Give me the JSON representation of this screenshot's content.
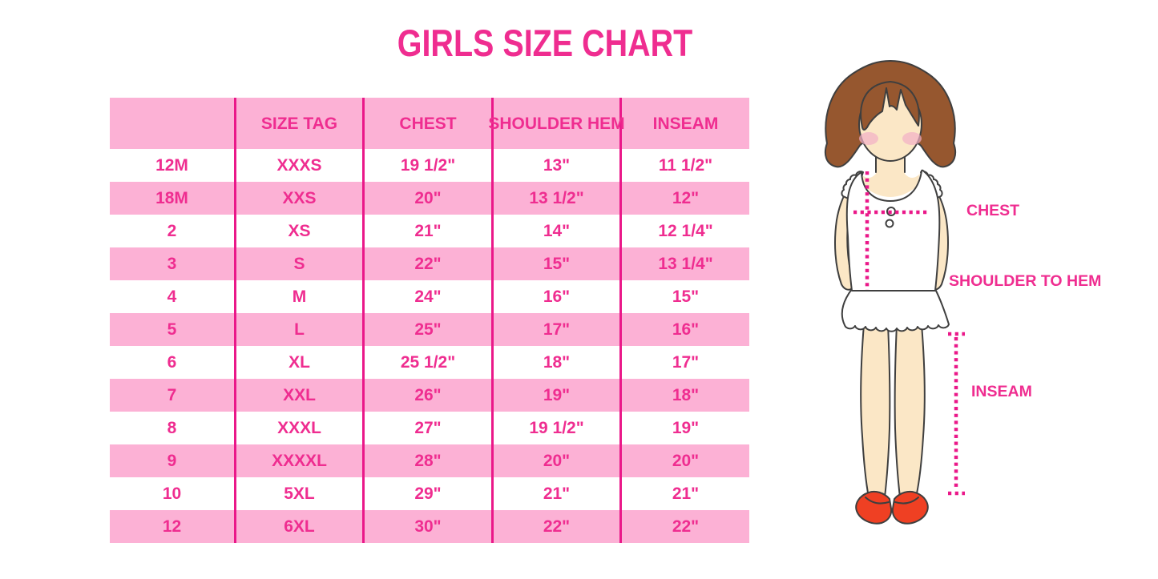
{
  "title": "GIRLS SIZE CHART",
  "table": {
    "headers": [
      "",
      "SIZE TAG",
      "CHEST",
      "SHOULDER HEM",
      "INSEAM"
    ],
    "rows": [
      [
        "12M",
        "XXXS",
        "19 1/2\"",
        "13\"",
        "11 1/2\""
      ],
      [
        "18M",
        "XXS",
        "20\"",
        "13 1/2\"",
        "12\""
      ],
      [
        "2",
        "XS",
        "21\"",
        "14\"",
        "12 1/4\""
      ],
      [
        "3",
        "S",
        "22\"",
        "15\"",
        "13 1/4\""
      ],
      [
        "4",
        "M",
        "24\"",
        "16\"",
        "15\""
      ],
      [
        "5",
        "L",
        "25\"",
        "17\"",
        "16\""
      ],
      [
        "6",
        "XL",
        "25 1/2\"",
        "18\"",
        "17\""
      ],
      [
        "7",
        "XXL",
        "26\"",
        "19\"",
        "18\""
      ],
      [
        "8",
        "XXXL",
        "27\"",
        "19 1/2\"",
        "19\""
      ],
      [
        "9",
        "XXXXL",
        "28\"",
        "20\"",
        "20\""
      ],
      [
        "10",
        "5XL",
        "29\"",
        "21\"",
        "21\""
      ],
      [
        "12",
        "6XL",
        "30\"",
        "22\"",
        "22\""
      ]
    ]
  },
  "diagram": {
    "chest_label": "CHEST",
    "shoulder_label": "SHOULDER TO HEM",
    "inseam_label": "INSEAM"
  },
  "colors": {
    "magenta": "#EF2D90",
    "line-magenta": "#EA1889",
    "row-pink": "#FCB1D5",
    "hair": "#96572F",
    "skin": "#FBE7C6",
    "blush": "#F2AFC6",
    "shoe": "#EF4023",
    "outline": "#3F3F3F"
  }
}
